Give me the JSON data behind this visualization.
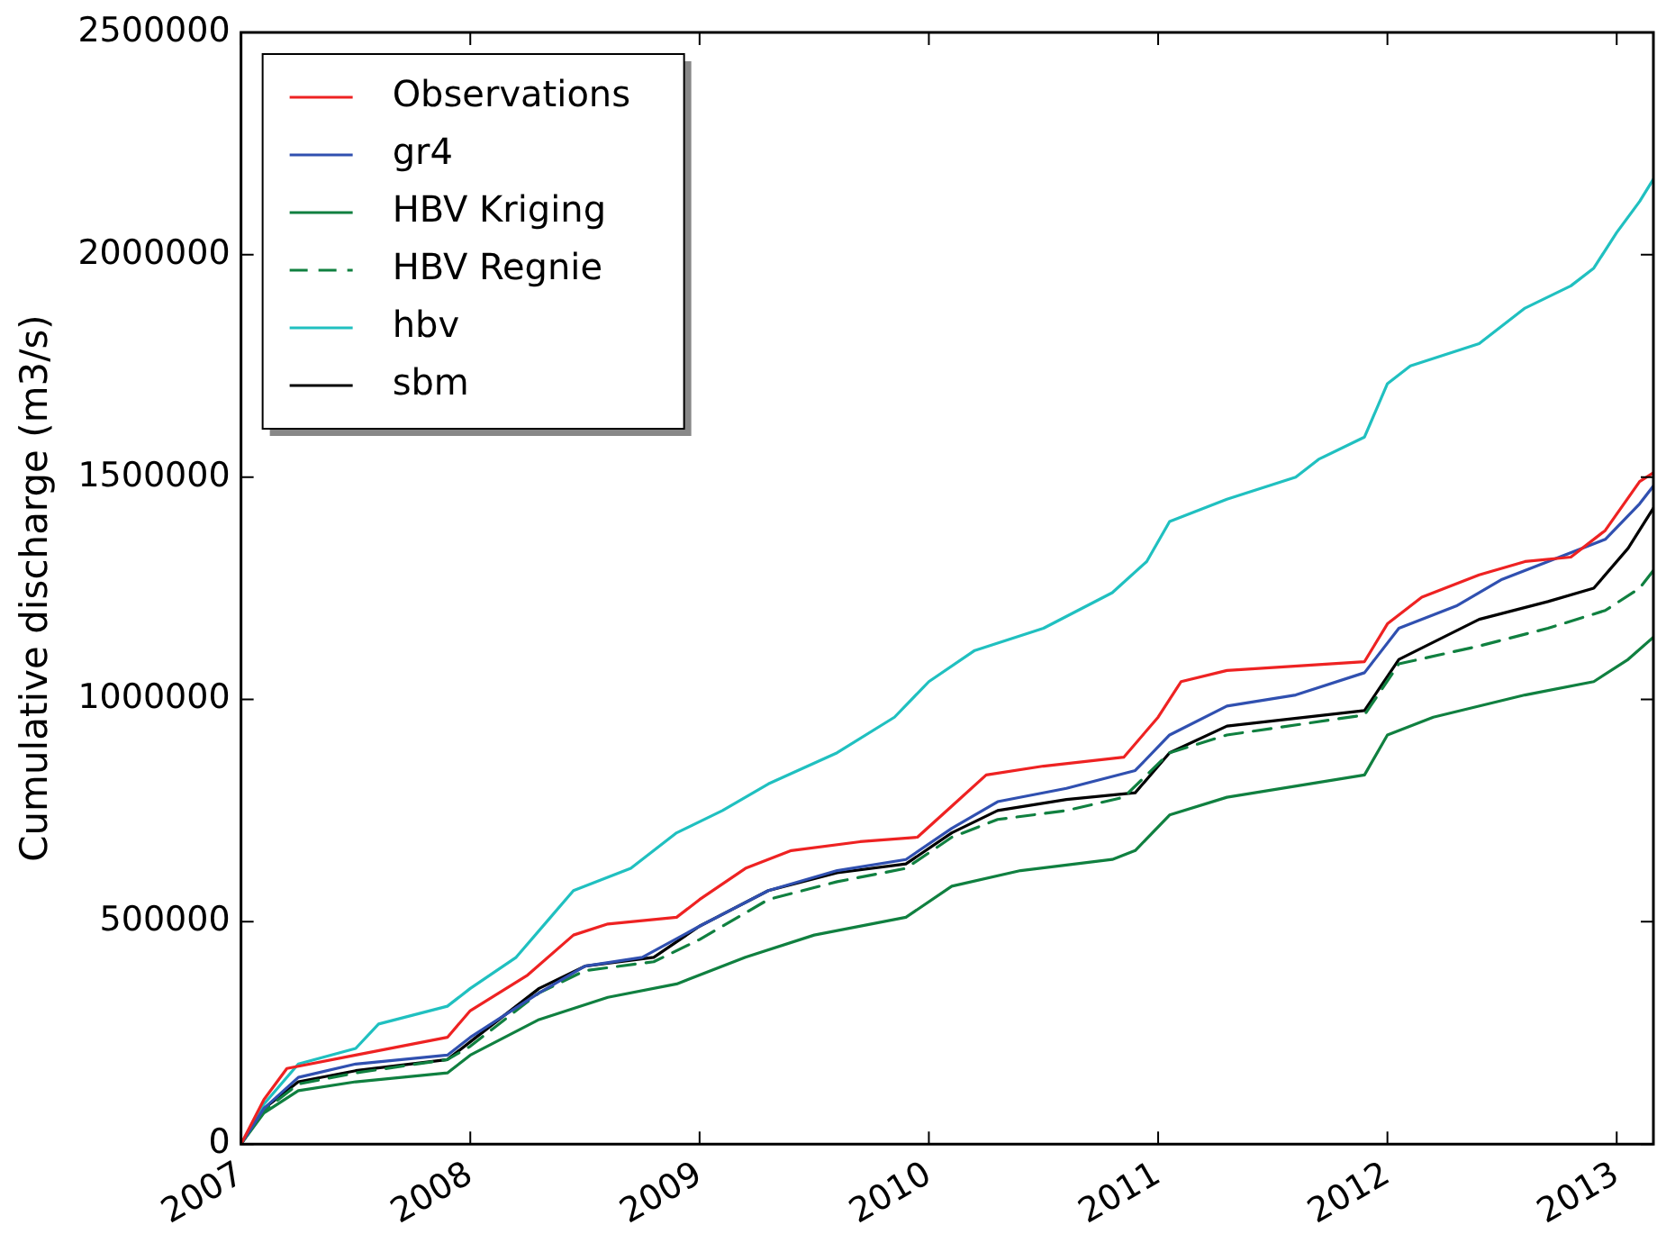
{
  "chart_data": {
    "type": "line",
    "ylabel": "Cumulative discharge (m3/s)",
    "xlim": [
      2007,
      2013.16
    ],
    "xticks": [
      2007,
      2008,
      2009,
      2010,
      2011,
      2012,
      2013
    ],
    "ylim": [
      0,
      2500000
    ],
    "yticks": [
      0,
      500000,
      1000000,
      1500000,
      2000000,
      2500000
    ],
    "grid": false,
    "legend": "top left",
    "marker": "none",
    "series": [
      {
        "name": "Observations",
        "color": "#ee2222",
        "line_style": "solid",
        "x": [
          2007,
          2007.1,
          2007.2,
          2007.5,
          2007.9,
          2008,
          2008.25,
          2008.45,
          2008.6,
          2008.9,
          2009,
          2009.2,
          2009.4,
          2009.7,
          2009.95,
          2010.1,
          2010.25,
          2010.5,
          2010.85,
          2011,
          2011.1,
          2011.3,
          2011.9,
          2012,
          2012.15,
          2012.4,
          2012.6,
          2012.8,
          2012.95,
          2013.1,
          2013.16
        ],
        "values": [
          0,
          100000,
          170000,
          200000,
          240000,
          300000,
          380000,
          470000,
          495000,
          510000,
          550000,
          620000,
          660000,
          680000,
          690000,
          760000,
          830000,
          850000,
          870000,
          960000,
          1040000,
          1065000,
          1085000,
          1170000,
          1230000,
          1280000,
          1310000,
          1320000,
          1380000,
          1490000,
          1510000
        ]
      },
      {
        "name": "gr4",
        "color": "#3050b0",
        "line_style": "solid",
        "x": [
          2007,
          2007.1,
          2007.25,
          2007.5,
          2007.9,
          2008,
          2008.3,
          2008.5,
          2008.75,
          2009,
          2009.3,
          2009.6,
          2009.9,
          2010.1,
          2010.3,
          2010.6,
          2010.9,
          2011.05,
          2011.3,
          2011.6,
          2011.9,
          2012.05,
          2012.3,
          2012.5,
          2012.7,
          2012.95,
          2013.1,
          2013.16
        ],
        "values": [
          0,
          80000,
          150000,
          180000,
          200000,
          240000,
          340000,
          400000,
          420000,
          490000,
          570000,
          615000,
          640000,
          710000,
          770000,
          800000,
          840000,
          920000,
          985000,
          1010000,
          1060000,
          1160000,
          1210000,
          1270000,
          1310000,
          1360000,
          1440000,
          1480000
        ]
      },
      {
        "name": "HBV Kriging",
        "color": "#108040",
        "line_style": "solid",
        "x": [
          2007,
          2007.1,
          2007.25,
          2007.5,
          2007.9,
          2008,
          2008.3,
          2008.6,
          2008.9,
          2009.2,
          2009.5,
          2009.9,
          2010.1,
          2010.4,
          2010.8,
          2010.9,
          2011.05,
          2011.3,
          2011.9,
          2012,
          2012.2,
          2012.6,
          2012.9,
          2013.05,
          2013.16
        ],
        "values": [
          0,
          70000,
          120000,
          140000,
          160000,
          200000,
          280000,
          330000,
          360000,
          420000,
          470000,
          510000,
          580000,
          615000,
          640000,
          660000,
          740000,
          780000,
          830000,
          920000,
          960000,
          1010000,
          1040000,
          1090000,
          1140000
        ]
      },
      {
        "name": "HBV Regnie",
        "color": "#108040",
        "line_style": "dashed",
        "x": [
          2007,
          2007.1,
          2007.25,
          2007.5,
          2007.9,
          2008,
          2008.3,
          2008.5,
          2008.8,
          2009,
          2009.3,
          2009.6,
          2009.9,
          2010.1,
          2010.3,
          2010.6,
          2010.85,
          2011.05,
          2011.3,
          2011.9,
          2012.05,
          2012.4,
          2012.7,
          2012.95,
          2013.1,
          2013.16
        ],
        "values": [
          0,
          75000,
          135000,
          160000,
          190000,
          220000,
          340000,
          390000,
          410000,
          460000,
          550000,
          590000,
          620000,
          690000,
          730000,
          750000,
          780000,
          880000,
          920000,
          965000,
          1080000,
          1120000,
          1160000,
          1200000,
          1250000,
          1290000
        ]
      },
      {
        "name": "hbv",
        "color": "#20c0c0",
        "line_style": "solid",
        "x": [
          2007,
          2007.1,
          2007.25,
          2007.5,
          2007.6,
          2007.9,
          2008,
          2008.2,
          2008.35,
          2008.45,
          2008.7,
          2008.9,
          2009.1,
          2009.3,
          2009.6,
          2009.85,
          2010,
          2010.2,
          2010.5,
          2010.8,
          2010.95,
          2011.05,
          2011.3,
          2011.6,
          2011.7,
          2011.9,
          2012,
          2012.1,
          2012.4,
          2012.6,
          2012.8,
          2012.9,
          2013,
          2013.1,
          2013.16
        ],
        "values": [
          0,
          90000,
          180000,
          215000,
          270000,
          310000,
          350000,
          420000,
          510000,
          570000,
          620000,
          700000,
          750000,
          810000,
          880000,
          960000,
          1040000,
          1110000,
          1160000,
          1240000,
          1310000,
          1400000,
          1450000,
          1500000,
          1540000,
          1590000,
          1710000,
          1750000,
          1800000,
          1880000,
          1930000,
          1970000,
          2050000,
          2120000,
          2170000
        ]
      },
      {
        "name": "sbm",
        "color": "#000000",
        "line_style": "solid",
        "x": [
          2007,
          2007.1,
          2007.25,
          2007.5,
          2007.9,
          2008,
          2008.3,
          2008.5,
          2008.8,
          2009,
          2009.3,
          2009.6,
          2009.9,
          2010.1,
          2010.3,
          2010.6,
          2010.9,
          2011.05,
          2011.3,
          2011.9,
          2012.05,
          2012.4,
          2012.7,
          2012.9,
          2013.05,
          2013.16
        ],
        "values": [
          0,
          80000,
          140000,
          165000,
          190000,
          230000,
          350000,
          400000,
          420000,
          490000,
          570000,
          610000,
          630000,
          700000,
          750000,
          775000,
          790000,
          880000,
          940000,
          975000,
          1090000,
          1180000,
          1220000,
          1250000,
          1340000,
          1430000
        ]
      }
    ]
  }
}
